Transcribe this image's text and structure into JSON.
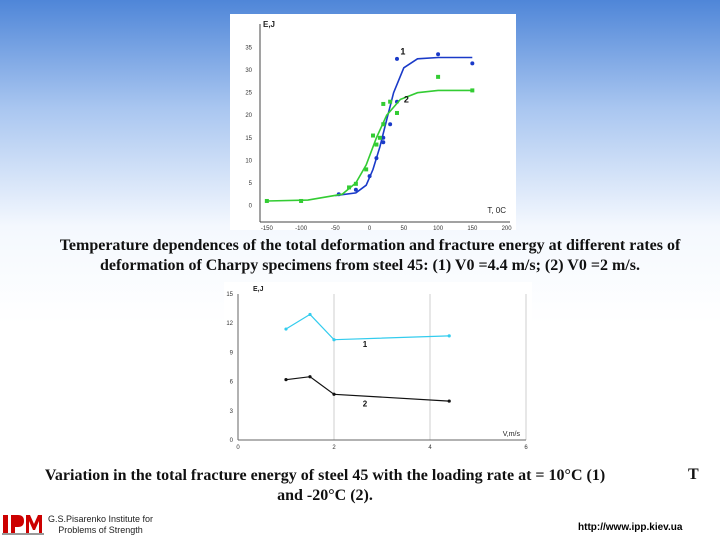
{
  "chart_data": [
    {
      "type": "scatter",
      "ylabel": "E,J",
      "xlabel": "T, 0C",
      "x_ticks": [
        "-150",
        "-100",
        "-50",
        "0",
        "50",
        "100",
        "150",
        "200"
      ],
      "y_ticks": [
        "0",
        "5",
        "10",
        "15",
        "20",
        "25",
        "30",
        "35"
      ],
      "xlim": [
        -160,
        205
      ],
      "ylim": [
        -1,
        38
      ],
      "series": [
        {
          "name": "1",
          "color": "#1a3ac8",
          "points": [
            [
              -45,
              2.5
            ],
            [
              -20,
              3.5
            ],
            [
              0,
              6.5
            ],
            [
              10,
              10.5
            ],
            [
              20,
              14
            ],
            [
              20,
              15
            ],
            [
              30,
              18
            ],
            [
              40,
              23
            ],
            [
              40,
              32.5
            ],
            [
              100,
              33.5
            ],
            [
              150,
              31.5
            ]
          ],
          "curve": [
            [
              -50,
              2.2
            ],
            [
              -20,
              2.8
            ],
            [
              -5,
              4.5
            ],
            [
              5,
              8
            ],
            [
              15,
              13
            ],
            [
              25,
              19
            ],
            [
              35,
              25
            ],
            [
              50,
              30.5
            ],
            [
              70,
              32.5
            ],
            [
              100,
              32.8
            ],
            [
              150,
              32.8
            ]
          ]
        },
        {
          "name": "2",
          "color": "#33cc33",
          "points": [
            [
              -150,
              1
            ],
            [
              -100,
              1
            ],
            [
              -30,
              4
            ],
            [
              -20,
              4.8
            ],
            [
              -5,
              8
            ],
            [
              5,
              15.5
            ],
            [
              10,
              13.5
            ],
            [
              15,
              15
            ],
            [
              20,
              18
            ],
            [
              20,
              22.5
            ],
            [
              30,
              23
            ],
            [
              40,
              20.5
            ],
            [
              100,
              28.5
            ],
            [
              150,
              25.5
            ]
          ],
          "curve": [
            [
              -150,
              1
            ],
            [
              -90,
              1.2
            ],
            [
              -40,
              2.5
            ],
            [
              -20,
              5
            ],
            [
              -5,
              9
            ],
            [
              10,
              15
            ],
            [
              25,
              20
            ],
            [
              45,
              23.5
            ],
            [
              70,
              25
            ],
            [
              100,
              25.5
            ],
            [
              150,
              25.5
            ]
          ]
        }
      ]
    },
    {
      "type": "line",
      "ylabel": "E,J",
      "xlabel": "V,m/s",
      "x_ticks": [
        "0",
        "2",
        "4",
        "6"
      ],
      "y_ticks": [
        "0",
        "3",
        "6",
        "9",
        "12",
        "15"
      ],
      "xlim": [
        0,
        6
      ],
      "ylim": [
        0,
        15
      ],
      "series": [
        {
          "name": "1",
          "color": "#33ccee",
          "x": [
            1.0,
            1.5,
            2.0,
            4.4
          ],
          "values": [
            11.4,
            12.9,
            10.3,
            10.7
          ]
        },
        {
          "name": "2",
          "color": "#111111",
          "x": [
            1.0,
            1.5,
            2.0,
            4.4
          ],
          "values": [
            6.2,
            6.5,
            4.7,
            4.0
          ]
        }
      ]
    }
  ],
  "captions": {
    "chart1": "Temperature dependences of the total deformation and fracture energy at different rates of deformation of Charpy specimens from steel 45: (1) V0 =4.4 m/s; (2) V0 =2 m/s.",
    "chart2": "Variation in the total fracture energy of steel 45 with the loading rate at = 10°C (1) and -20°C (2).",
    "chart2_t": "T"
  },
  "footer": {
    "institute_line1": "G.S.Pisarenko Institute for",
    "institute_line2": "Problems of Strength",
    "url": "http://www.ipp.kiev.ua",
    "logo_icon": "ipp-logo-icon",
    "logo_color": "#cc0000"
  }
}
